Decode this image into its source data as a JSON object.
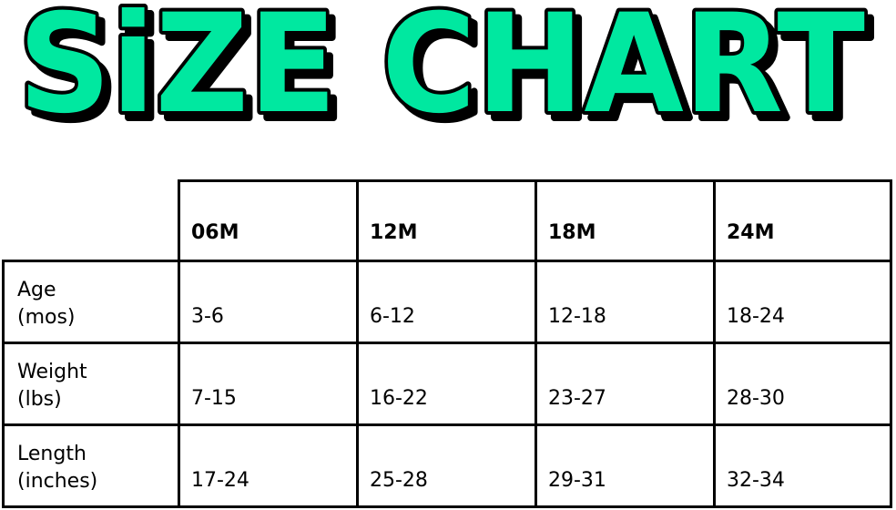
{
  "title": "SiZE CHART",
  "title_color": "#00E8A0",
  "columns": [
    "06M",
    "12M",
    "18M",
    "24M"
  ],
  "rows": [
    {
      "label": [
        "Age",
        "(mos)"
      ],
      "values": [
        "3-6",
        "6-12",
        "12-18",
        "18-24"
      ]
    },
    {
      "label": [
        "Weight",
        "(lbs)"
      ],
      "values": [
        "7-15",
        "16-22",
        "23-27",
        "28-30"
      ]
    },
    {
      "label": [
        "Length",
        "(inches)"
      ],
      "values": [
        "17-24",
        "25-28",
        "29-31",
        "32-34"
      ]
    }
  ]
}
